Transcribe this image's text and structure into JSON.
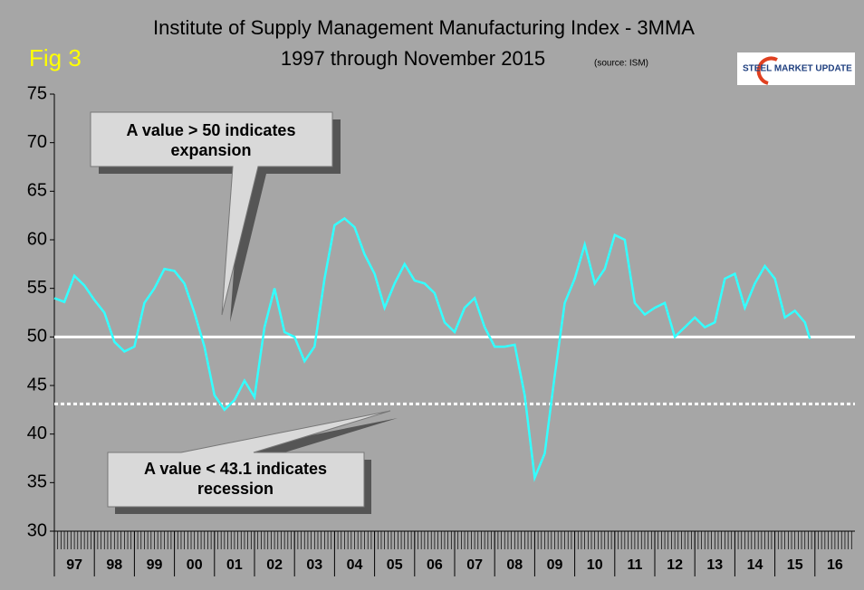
{
  "chart_data": {
    "type": "line",
    "title": "Institute of Supply Management Manufacturing Index - 3MMA",
    "subtitle": "1997 through November 2015",
    "figure_label": "Fig 3",
    "source": "(source: ISM)",
    "logo": "STEEL MARKET UPDATE",
    "annotations": [
      "A value > 50 indicates expansion",
      "A value < 43.1 indicates recession"
    ],
    "reference_lines": [
      {
        "value": 50,
        "style": "solid"
      },
      {
        "value": 43.1,
        "style": "dotted"
      }
    ],
    "xlim": [
      97,
      117
    ],
    "xticks": [
      97,
      98,
      99,
      {
        "value": 100,
        "label": "00"
      },
      {
        "value": 101,
        "label": "01"
      },
      {
        "value": 102,
        "label": "02"
      },
      {
        "value": 103,
        "label": "03"
      },
      {
        "value": 104,
        "label": "04"
      },
      {
        "value": 105,
        "label": "05"
      },
      {
        "value": 106,
        "label": "06"
      },
      {
        "value": 107,
        "label": "07"
      },
      {
        "value": 108,
        "label": "08"
      },
      {
        "value": 109,
        "label": "09"
      },
      {
        "value": 110,
        "label": "10"
      },
      {
        "value": 111,
        "label": "11"
      },
      {
        "value": 112,
        "label": "12"
      },
      {
        "value": 113,
        "label": "13"
      },
      {
        "value": 114,
        "label": "14"
      },
      {
        "value": 115,
        "label": "15"
      },
      {
        "value": 116,
        "label": "16"
      }
    ],
    "ylim": [
      30,
      75
    ],
    "yticks": [
      30,
      35,
      40,
      45,
      50,
      55,
      60,
      65,
      70,
      75
    ],
    "x": [
      97,
      97.25,
      97.5,
      97.75,
      98,
      98.25,
      98.5,
      98.75,
      99,
      99.25,
      99.5,
      99.75,
      100,
      100.25,
      100.5,
      100.75,
      101,
      101.25,
      101.5,
      101.75,
      102,
      102.25,
      102.5,
      102.75,
      103,
      103.25,
      103.5,
      103.75,
      104,
      104.25,
      104.5,
      104.75,
      105,
      105.25,
      105.5,
      105.75,
      106,
      106.25,
      106.5,
      106.75,
      107,
      107.25,
      107.5,
      107.75,
      108,
      108.25,
      108.5,
      108.75,
      109,
      109.25,
      109.5,
      109.75,
      110,
      110.25,
      110.5,
      110.75,
      111,
      111.25,
      111.5,
      111.75,
      112,
      112.25,
      112.5,
      112.75,
      113,
      113.25,
      113.5,
      113.75,
      114,
      114.25,
      114.5,
      114.75,
      115,
      115.25,
      115.5,
      115.75,
      115.875
    ],
    "series": [
      {
        "color": "#33ffff",
        "values": [
          54,
          53.6,
          56.3,
          55.3,
          53.8,
          52.5,
          49.5,
          48.5,
          49,
          53.5,
          55,
          57,
          56.8,
          55.5,
          52.5,
          49,
          44,
          42.5,
          43.5,
          45.5,
          43.8,
          51,
          55,
          50.5,
          50,
          47.5,
          49,
          56,
          61.5,
          62.2,
          61.3,
          58.5,
          56.5,
          53,
          55.5,
          57.5,
          55.8,
          55.5,
          54.5,
          51.5,
          50.5,
          53,
          54,
          51,
          49,
          49,
          49.2,
          44,
          35.5,
          38,
          46,
          53.5,
          56,
          59.5,
          55.5,
          57,
          60.5,
          60,
          53.5,
          52.3,
          53,
          53.5,
          50,
          51,
          52,
          51,
          51.5,
          56,
          56.5,
          53,
          55.5,
          57.3,
          56,
          52,
          52.7,
          51.5,
          49.8
        ]
      }
    ]
  }
}
